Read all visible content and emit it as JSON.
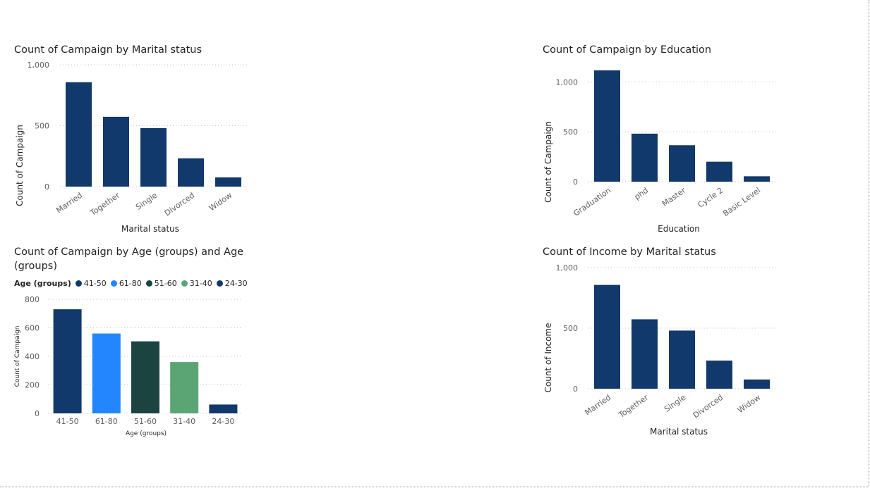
{
  "chart_data": [
    {
      "id": "marital",
      "type": "bar",
      "title": "Count of Campaign by Marital status",
      "xlabel": "Marital status",
      "ylabel": "Count of Campaign",
      "categories": [
        "Married",
        "Together",
        "Single",
        "Divorced",
        "Widow"
      ],
      "values": [
        857,
        573,
        480,
        232,
        76
      ],
      "ylim": [
        0,
        1000
      ],
      "yticks": [
        "0",
        "500",
        "1,000"
      ],
      "ytick_values": [
        0,
        500,
        1000
      ],
      "grid": true,
      "colors": [
        "#12396b",
        "#12396b",
        "#12396b",
        "#12396b",
        "#12396b"
      ]
    },
    {
      "id": "education",
      "type": "bar",
      "title": "Count of Campaign by Education",
      "xlabel": "Education",
      "ylabel": "Count of Campaign",
      "categories": [
        "Graduation",
        "phd",
        "Master",
        "Cycle 2",
        "Basic Level"
      ],
      "values": [
        1116,
        481,
        365,
        200,
        54
      ],
      "ylim": [
        0,
        1150
      ],
      "yticks": [
        "0",
        "500",
        "1,000"
      ],
      "ytick_values": [
        0,
        500,
        1000
      ],
      "grid": true,
      "colors": [
        "#12396b",
        "#12396b",
        "#12396b",
        "#12396b",
        "#12396b"
      ]
    },
    {
      "id": "age",
      "type": "bar",
      "title": "Count of Campaign by Age (groups) and Age (groups)",
      "xlabel": "Age (groups)",
      "ylabel": "Count of Campaign",
      "categories": [
        "41-50",
        "61-80",
        "51-60",
        "31-40",
        "24-30"
      ],
      "values": [
        730,
        560,
        505,
        360,
        62
      ],
      "ylim": [
        0,
        800
      ],
      "yticks": [
        "0",
        "200",
        "400",
        "600",
        "800"
      ],
      "ytick_values": [
        0,
        200,
        400,
        600,
        800
      ],
      "grid": true,
      "colors": [
        "#12396b",
        "#2386ff",
        "#1b4441",
        "#5ba575",
        "#12396b"
      ],
      "legend": {
        "title": "Age (groups)",
        "position": "top-left",
        "items": [
          {
            "label": "41-50",
            "color": "#12396b"
          },
          {
            "label": "61-80",
            "color": "#2386ff"
          },
          {
            "label": "51-60",
            "color": "#1b4441"
          },
          {
            "label": "31-40",
            "color": "#5ba575"
          },
          {
            "label": "24-30",
            "color": "#12396b"
          }
        ]
      }
    },
    {
      "id": "income",
      "type": "bar",
      "title": "Count of Income by Marital status",
      "xlabel": "Marital status",
      "ylabel": "Count of Income",
      "categories": [
        "Married",
        "Together",
        "Single",
        "Divorced",
        "Widow"
      ],
      "values": [
        857,
        573,
        480,
        232,
        76
      ],
      "ylim": [
        0,
        1000
      ],
      "yticks": [
        "0",
        "500",
        "1,000"
      ],
      "ytick_values": [
        0,
        500,
        1000
      ],
      "grid": true,
      "colors": [
        "#12396b",
        "#12396b",
        "#12396b",
        "#12396b",
        "#12396b"
      ]
    }
  ]
}
